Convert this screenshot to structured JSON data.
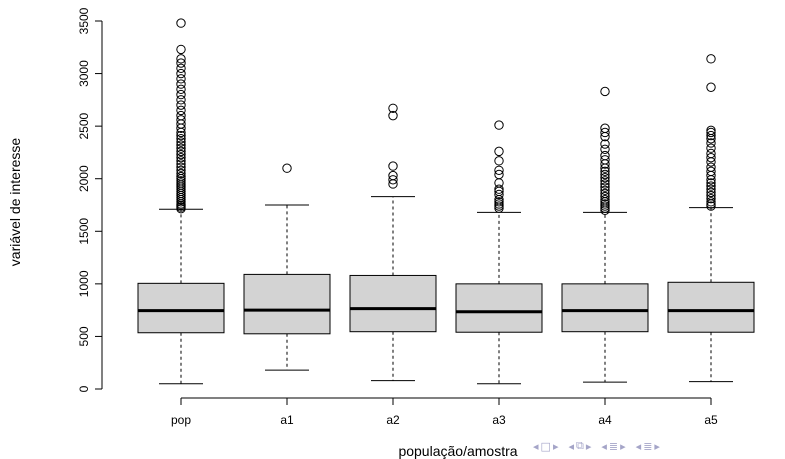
{
  "chart_data": {
    "type": "boxplot",
    "title": "",
    "xlabel": "população/amostra",
    "ylabel": "variável de interesse",
    "ylim": [
      -150,
      3550
    ],
    "y_ticks": [
      0,
      500,
      1000,
      1500,
      2000,
      2500,
      3000,
      3500
    ],
    "y_tick_labels": [
      "0",
      "500",
      "1000",
      "1500",
      "2000",
      "2500",
      "3000",
      "3500"
    ],
    "categories": [
      "pop",
      "a1",
      "a2",
      "a3",
      "a4",
      "a5"
    ],
    "box_fill": "#d3d3d3",
    "boxes": [
      {
        "name": "pop",
        "whisker_low": 50,
        "q1": 535,
        "median": 745,
        "q3": 1005,
        "whisker_high": 1710,
        "outliers": [
          1715,
          1730,
          1745,
          1760,
          1780,
          1800,
          1820,
          1840,
          1860,
          1880,
          1900,
          1920,
          1940,
          1960,
          1980,
          2000,
          2020,
          2050,
          2080,
          2110,
          2140,
          2170,
          2200,
          2230,
          2260,
          2290,
          2320,
          2350,
          2380,
          2410,
          2440,
          2480,
          2520,
          2560,
          2600,
          2650,
          2700,
          2750,
          2800,
          2850,
          2900,
          2950,
          3000,
          3050,
          3100,
          3140,
          3230,
          3480
        ]
      },
      {
        "name": "a1",
        "whisker_low": 180,
        "q1": 525,
        "median": 750,
        "q3": 1090,
        "whisker_high": 1750,
        "outliers": [
          2100
        ]
      },
      {
        "name": "a2",
        "whisker_low": 80,
        "q1": 545,
        "median": 765,
        "q3": 1080,
        "whisker_high": 1830,
        "outliers": [
          1950,
          1990,
          2030,
          2120,
          2600,
          2670
        ]
      },
      {
        "name": "a3",
        "whisker_low": 50,
        "q1": 540,
        "median": 735,
        "q3": 1000,
        "whisker_high": 1680,
        "outliers": [
          1720,
          1740,
          1760,
          1780,
          1800,
          1850,
          1880,
          1900,
          1960,
          2040,
          2080,
          2170,
          2260,
          2510
        ]
      },
      {
        "name": "a4",
        "whisker_low": 65,
        "q1": 545,
        "median": 745,
        "q3": 1000,
        "whisker_high": 1680,
        "outliers": [
          1700,
          1720,
          1740,
          1760,
          1780,
          1800,
          1830,
          1860,
          1890,
          1920,
          1950,
          1980,
          2010,
          2040,
          2070,
          2100,
          2140,
          2180,
          2220,
          2280,
          2330,
          2400,
          2440,
          2480,
          2830
        ]
      },
      {
        "name": "a5",
        "whisker_low": 70,
        "q1": 540,
        "median": 745,
        "q3": 1015,
        "whisker_high": 1725,
        "outliers": [
          1740,
          1760,
          1780,
          1810,
          1840,
          1870,
          1900,
          1930,
          1960,
          1990,
          2030,
          2070,
          2110,
          2160,
          2200,
          2240,
          2290,
          2340,
          2380,
          2410,
          2440,
          2460,
          2870,
          3140
        ]
      }
    ]
  },
  "nav": {
    "color": "#a5a5c8",
    "icons": [
      "arrow-left-icon",
      "frame-icon",
      "arrow-right-icon",
      "arrow-left-icon",
      "frames-icon",
      "arrow-right-icon",
      "arrow-left-icon",
      "section-icon",
      "arrow-right-icon",
      "arrow-left-icon",
      "subsection-icon",
      "arrow-right-icon"
    ]
  }
}
